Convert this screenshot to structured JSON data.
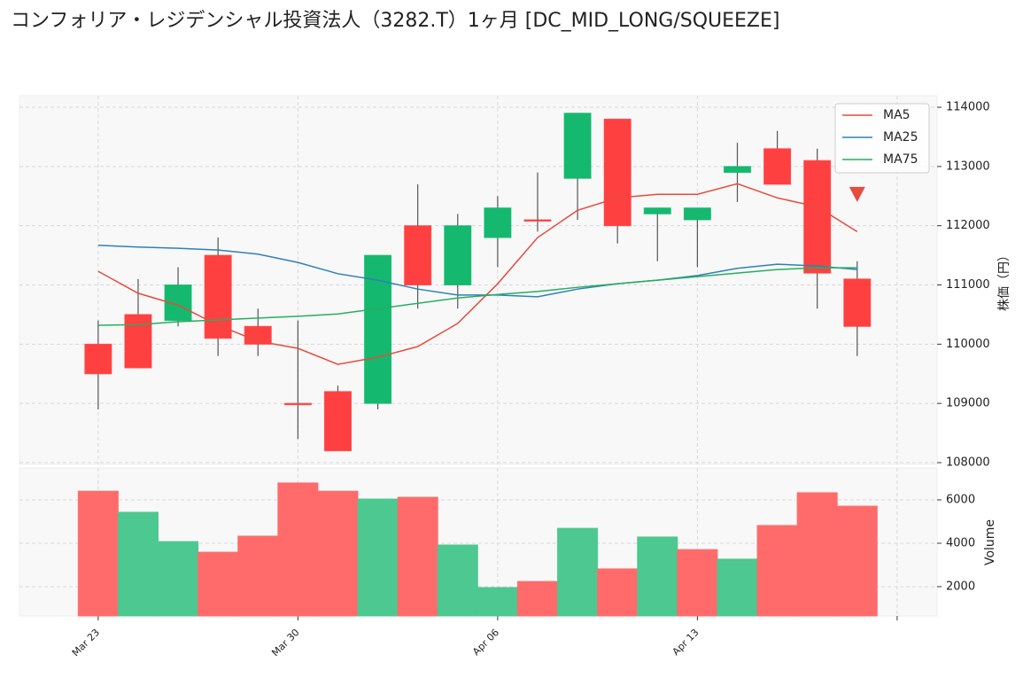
{
  "chart_data": [
    {
      "type": "candlestick",
      "title": "コンフォリア・レジデンシャル投資法人（3282.T）1ヶ月 [DC_MID_LONG/SQUEEZE]",
      "y_label": "株価（円）",
      "open": [
        110000,
        110500,
        110400,
        111500,
        110300,
        109000,
        109200,
        109000,
        112000,
        111000,
        111800,
        112100,
        112800,
        113800,
        112200,
        112100,
        112900,
        113300,
        113100,
        111100
      ],
      "high": [
        110400,
        111100,
        111300,
        111800,
        110600,
        110400,
        109300,
        111500,
        112700,
        112200,
        112500,
        112900,
        113900,
        113800,
        112300,
        112300,
        113400,
        113600,
        113300,
        111400
      ],
      "low": [
        108900,
        109600,
        110300,
        109800,
        109800,
        108400,
        108200,
        108900,
        110600,
        110600,
        111300,
        111900,
        112100,
        111700,
        111400,
        111300,
        112400,
        112700,
        110600,
        109800
      ],
      "close": [
        109500,
        109600,
        111000,
        110100,
        110000,
        109000,
        108200,
        111500,
        111000,
        112000,
        112300,
        112100,
        113900,
        112000,
        112300,
        112300,
        113000,
        112700,
        111200,
        110300
      ],
      "up_color": "#14b86e",
      "down_color": "#ff4040",
      "series": [
        {
          "name": "MA5",
          "color": "#e74c3c",
          "values": [
            111230,
            110860,
            110660,
            110320,
            110050,
            109930,
            109660,
            109780,
            109960,
            110350,
            111020,
            111800,
            112260,
            112470,
            112530,
            112530,
            112710,
            112470,
            112320,
            111900
          ]
        },
        {
          "name": "MA25",
          "color": "#2f80b8",
          "values": [
            111670,
            111640,
            111620,
            111590,
            111520,
            111380,
            111190,
            111080,
            110930,
            110830,
            110830,
            110800,
            110930,
            111020,
            111080,
            111160,
            111280,
            111350,
            111320,
            111260
          ]
        },
        {
          "name": "MA75",
          "color": "#27ae60",
          "values": [
            110320,
            110330,
            110380,
            110410,
            110440,
            110470,
            110510,
            110600,
            110690,
            110780,
            110840,
            110890,
            110960,
            111020,
            111080,
            111140,
            111200,
            111260,
            111290,
            111290
          ]
        }
      ],
      "markers": [
        {
          "x": 19,
          "y": 112520,
          "color": "#e74c3c"
        }
      ],
      "ylim": [
        107970,
        114195
      ],
      "yticks": [
        108000,
        109000,
        110000,
        111000,
        112000,
        113000,
        114000
      ],
      "grid": true,
      "legend": "upper right"
    },
    {
      "type": "bar",
      "y_label": "Volume",
      "categories": [
        "Mar 23",
        null,
        null,
        null,
        null,
        "Mar 30",
        null,
        null,
        null,
        null,
        "Apr 06",
        null,
        null,
        null,
        null,
        "Apr 13",
        null,
        null,
        null,
        null
      ],
      "values": [
        6400,
        5430,
        4080,
        3590,
        4330,
        6780,
        6400,
        6040,
        6120,
        3920,
        1960,
        2240,
        4690,
        2820,
        4290,
        3710,
        3270,
        4820,
        6330,
        5710
      ],
      "colors": [
        "#ff6b6b",
        "#4cc890",
        "#4cc890",
        "#ff6b6b",
        "#ff6b6b",
        "#ff6b6b",
        "#ff6b6b",
        "#4cc890",
        "#ff6b6b",
        "#4cc890",
        "#4cc890",
        "#ff6b6b",
        "#4cc890",
        "#ff6b6b",
        "#4cc890",
        "#ff6b6b",
        "#4cc890",
        "#ff6b6b",
        "#ff6b6b",
        "#ff6b6b"
      ],
      "xlim": [
        -1.97,
        21
      ],
      "xticks": [
        0,
        5,
        10,
        15,
        20
      ],
      "ylim": [
        650,
        7470
      ],
      "yticks": [
        2000,
        4000,
        6000
      ],
      "grid": true
    }
  ]
}
